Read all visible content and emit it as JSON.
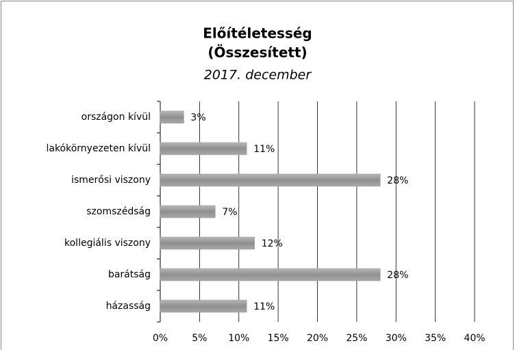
{
  "chart_data": {
    "type": "barh",
    "title": "Előítéletesség",
    "title_line2": "(Összesített)",
    "subtitle": "2017. december",
    "categories": [
      "országon kívül",
      "lakókörnyezeten kívül",
      "ismerősi viszony",
      "szomszédság",
      "kollegiális viszony",
      "barátság",
      "házasság"
    ],
    "values": [
      3,
      11,
      28,
      7,
      12,
      28,
      11
    ],
    "value_labels": [
      "3%",
      "11%",
      "28%",
      "7%",
      "12%",
      "28%",
      "11%"
    ],
    "color": "#9a9a9a",
    "xlim": [
      0,
      40
    ],
    "xticks": [
      {
        "value": 0,
        "label": "0%"
      },
      {
        "value": 5,
        "label": "5%"
      },
      {
        "value": 10,
        "label": "10%"
      },
      {
        "value": 15,
        "label": "15%"
      },
      {
        "value": 20,
        "label": "20%"
      },
      {
        "value": 25,
        "label": "25%"
      },
      {
        "value": 30,
        "label": "30%"
      },
      {
        "value": 35,
        "label": "35%"
      },
      {
        "value": 40,
        "label": "40%"
      }
    ],
    "grid": true
  }
}
